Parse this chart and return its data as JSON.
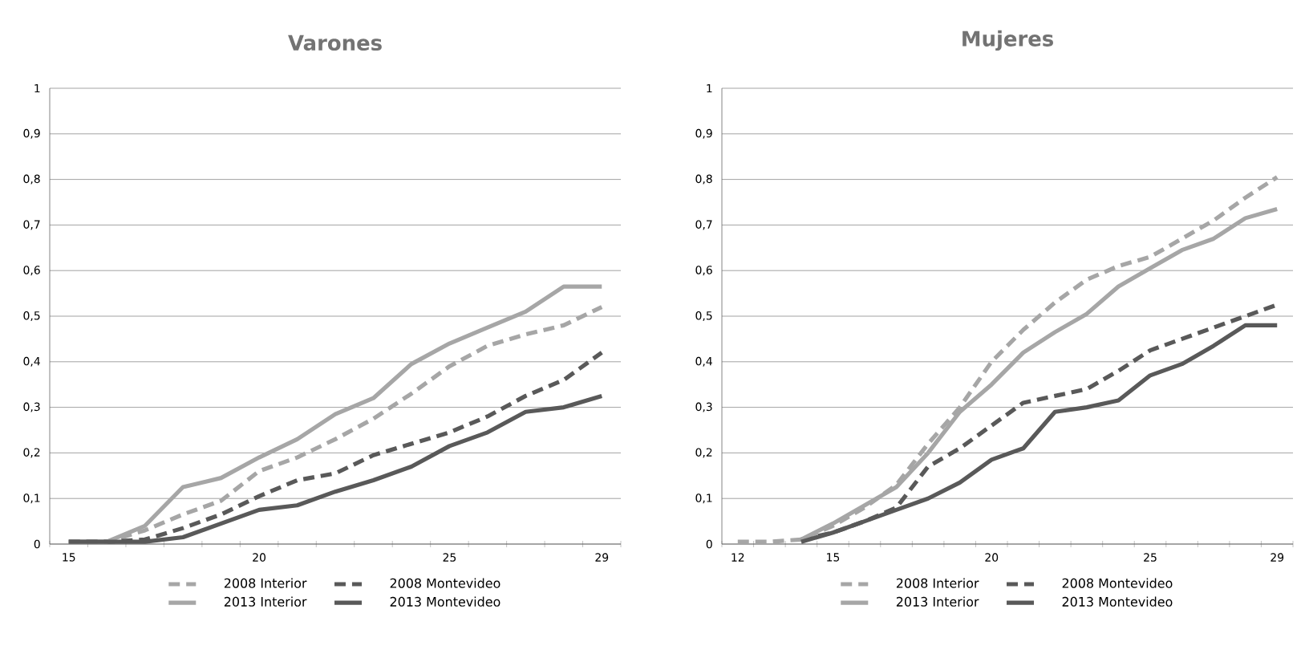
{
  "chart_data": [
    {
      "type": "line",
      "title": "Varones",
      "categories": [
        "15",
        null,
        null,
        null,
        null,
        "20",
        null,
        null,
        null,
        null,
        "25",
        null,
        null,
        null,
        "29"
      ],
      "series": [
        {
          "name": "2008 Interior",
          "color": "#a6a6a6",
          "line_style": "dashed",
          "values": [
            0.005,
            0.005,
            0.03,
            0.065,
            0.095,
            0.16,
            0.19,
            0.23,
            0.275,
            0.33,
            0.39,
            0.435,
            0.46,
            0.48,
            0.52
          ]
        },
        {
          "name": "2008 Montevideo",
          "color": "#595959",
          "line_style": "dashed",
          "values": [
            0.005,
            0.005,
            0.01,
            0.035,
            0.065,
            0.105,
            0.14,
            0.155,
            0.195,
            0.22,
            0.245,
            0.28,
            0.325,
            0.36,
            0.42
          ]
        },
        {
          "name": "2013 Interior",
          "color": "#a6a6a6",
          "line_style": "solid",
          "values": [
            0.005,
            0.005,
            0.04,
            0.125,
            0.145,
            0.19,
            0.23,
            0.285,
            0.32,
            0.395,
            0.44,
            0.475,
            0.51,
            0.565,
            0.565
          ]
        },
        {
          "name": "2013 Montevideo",
          "color": "#595959",
          "line_style": "solid",
          "values": [
            0.005,
            0.005,
            0.005,
            0.015,
            0.045,
            0.075,
            0.085,
            0.115,
            0.14,
            0.17,
            0.215,
            0.245,
            0.29,
            0.3,
            0.325
          ]
        }
      ],
      "ylim": [
        0,
        1
      ],
      "yticks": [
        {
          "value": 0,
          "label": "0"
        },
        {
          "value": 0.1,
          "label": "0,1"
        },
        {
          "value": 0.2,
          "label": "0,2"
        },
        {
          "value": 0.3,
          "label": "0,3"
        },
        {
          "value": 0.4,
          "label": "0,4"
        },
        {
          "value": 0.5,
          "label": "0,5"
        },
        {
          "value": 0.6,
          "label": "0,6"
        },
        {
          "value": 0.7,
          "label": "0,7"
        },
        {
          "value": 0.8,
          "label": "0,8"
        },
        {
          "value": 0.9,
          "label": "0,9"
        },
        {
          "value": 1,
          "label": "1"
        }
      ],
      "grid": "y",
      "legend": "bottom",
      "marker": "none"
    },
    {
      "type": "line",
      "title": "Mujeres",
      "categories": [
        "12",
        null,
        null,
        "15",
        null,
        null,
        null,
        null,
        "20",
        null,
        null,
        null,
        null,
        "25",
        null,
        null,
        null,
        "29"
      ],
      "series": [
        {
          "name": "2008 Interior",
          "color": "#a6a6a6",
          "line_style": "dashed",
          "values": [
            0.005,
            0.005,
            0.01,
            0.04,
            0.08,
            0.13,
            0.22,
            0.3,
            0.4,
            0.47,
            0.53,
            0.58,
            0.61,
            0.63,
            0.67,
            0.71,
            0.76,
            0.805
          ]
        },
        {
          "name": "2008 Montevideo",
          "color": "#595959",
          "line_style": "dashed",
          "values": [
            null,
            null,
            0.01,
            0.025,
            0.05,
            0.08,
            0.17,
            0.21,
            0.26,
            0.31,
            0.325,
            0.34,
            0.38,
            0.425,
            0.45,
            0.475,
            0.5,
            0.525
          ]
        },
        {
          "name": "2013 Interior",
          "color": "#a6a6a6",
          "line_style": "solid",
          "values": [
            null,
            null,
            0.01,
            0.045,
            0.085,
            0.125,
            0.2,
            0.29,
            0.35,
            0.42,
            0.465,
            0.505,
            0.565,
            0.605,
            0.645,
            0.67,
            0.715,
            0.735
          ]
        },
        {
          "name": "2013 Montevideo",
          "color": "#595959",
          "line_style": "solid",
          "values": [
            null,
            null,
            0.005,
            0.025,
            0.05,
            0.075,
            0.1,
            0.135,
            0.185,
            0.21,
            0.29,
            0.3,
            0.315,
            0.37,
            0.395,
            0.435,
            0.48,
            0.48
          ]
        }
      ],
      "ylim": [
        0,
        1
      ],
      "yticks": [
        {
          "value": 0,
          "label": "0"
        },
        {
          "value": 0.1,
          "label": "0,1"
        },
        {
          "value": 0.2,
          "label": "0,2"
        },
        {
          "value": 0.3,
          "label": "0,3"
        },
        {
          "value": 0.4,
          "label": "0,4"
        },
        {
          "value": 0.5,
          "label": "0,5"
        },
        {
          "value": 0.6,
          "label": "0,6"
        },
        {
          "value": 0.7,
          "label": "0,7"
        },
        {
          "value": 0.8,
          "label": "0,8"
        },
        {
          "value": 0.9,
          "label": "0,9"
        },
        {
          "value": 1,
          "label": "1"
        }
      ],
      "grid": "y",
      "legend": "bottom",
      "marker": "none"
    }
  ]
}
